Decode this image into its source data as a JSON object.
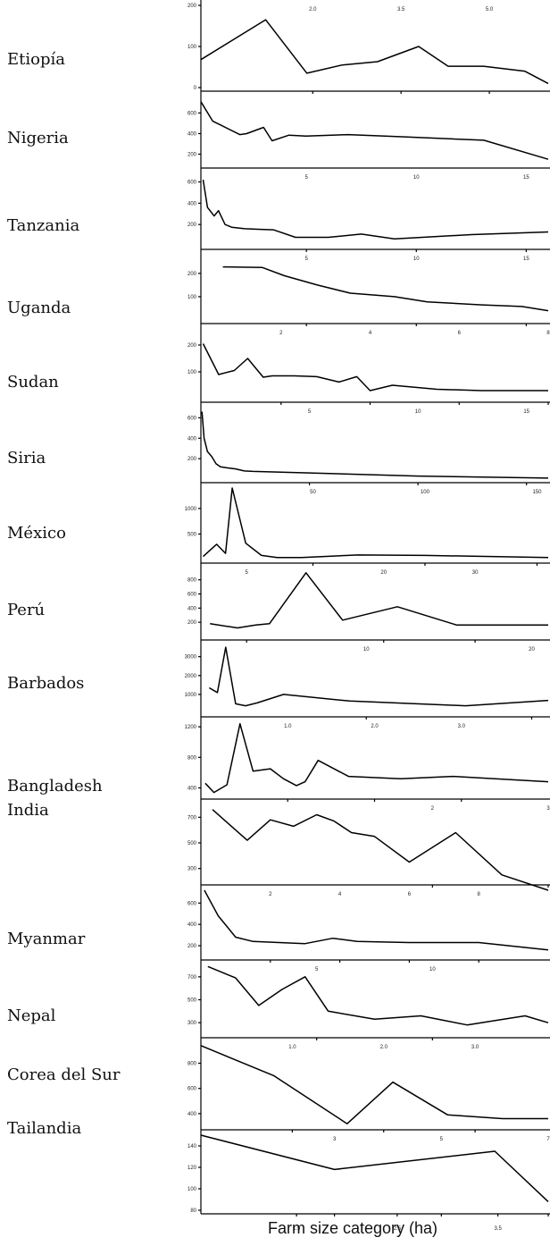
{
  "chart_data": {
    "type": "line",
    "title": "",
    "xlabel": "Farm size category (ha)",
    "ylabel": "",
    "grid": false,
    "panels": [
      {
        "name": "Etiopía",
        "xlim": [
          0.1,
          6.0
        ],
        "ylim": [
          0,
          200
        ],
        "yticks": [
          0,
          100,
          200
        ],
        "ytick_labels": [
          "0",
          "100",
          "200"
        ],
        "xticks": [
          2.0,
          3.5,
          5.0
        ],
        "xtick_labels": [
          "2.0",
          "3.5",
          "5.0"
        ],
        "x": [
          0.1,
          1.2,
          1.9,
          2.5,
          3.1,
          3.8,
          4.3,
          4.9,
          5.6,
          6.0
        ],
        "y": [
          68,
          165,
          35,
          55,
          63,
          100,
          52,
          52,
          40,
          10
        ]
      },
      {
        "name": "Nigeria",
        "xlim": [
          1.3,
          21.8
        ],
        "ylim": [
          100,
          760
        ],
        "yticks": [
          200,
          400,
          600
        ],
        "ytick_labels": [
          "200",
          "400",
          "600"
        ],
        "xticks": [],
        "xtick_labels": [],
        "x": [
          1.3,
          2.0,
          2.5,
          3.6,
          4.0,
          5.0,
          5.5,
          6.5,
          7.5,
          10,
          13,
          18,
          21.8
        ],
        "y": [
          710,
          520,
          480,
          390,
          400,
          460,
          330,
          385,
          375,
          390,
          370,
          335,
          150
        ]
      },
      {
        "name": "Tanzania",
        "xlim": [
          0.2,
          16.0
        ],
        "ylim": [
          0,
          680
        ],
        "yticks": [
          200,
          400,
          600
        ],
        "ytick_labels": [
          "200",
          "400",
          "600"
        ],
        "xticks": [
          5,
          10,
          15
        ],
        "xtick_labels": [
          "5",
          "10",
          "15"
        ],
        "x": [
          0.3,
          0.5,
          0.8,
          1.0,
          1.3,
          1.6,
          2.2,
          2.8,
          3.5,
          4.5,
          6.0,
          7.5,
          9.0,
          12.5,
          16.0
        ],
        "y": [
          620,
          360,
          280,
          330,
          200,
          175,
          160,
          155,
          150,
          80,
          80,
          110,
          65,
          105,
          130
        ]
      },
      {
        "name": "Uganda",
        "xlim": [
          0.2,
          16.0
        ],
        "ylim": [
          0,
          280
        ],
        "yticks": [
          100,
          200
        ],
        "ytick_labels": [
          "100",
          "200"
        ],
        "xticks": [
          5,
          10,
          15
        ],
        "xtick_labels": [
          "5",
          "10",
          "15"
        ],
        "x": [
          1.2,
          3.0,
          4.0,
          5.5,
          7.0,
          9.0,
          10.5,
          13.0,
          14.8,
          16.0
        ],
        "y": [
          228,
          225,
          190,
          150,
          115,
          100,
          78,
          65,
          58,
          40
        ]
      },
      {
        "name": "Sudan",
        "xlim": [
          0.2,
          8.0
        ],
        "ylim": [
          0,
          260
        ],
        "yticks": [
          100,
          200
        ],
        "ytick_labels": [
          "100",
          "200"
        ],
        "xticks": [
          2,
          4,
          6,
          8
        ],
        "xtick_labels": [
          "2",
          "4",
          "6",
          "8"
        ],
        "x": [
          0.25,
          0.6,
          0.95,
          1.25,
          1.6,
          1.8,
          2.3,
          2.8,
          3.3,
          3.7,
          4.0,
          4.5,
          5.5,
          6.5,
          8.0
        ],
        "y": [
          205,
          90,
          105,
          150,
          80,
          85,
          85,
          82,
          62,
          82,
          30,
          50,
          35,
          30,
          30
        ]
      },
      {
        "name": "Siria",
        "xlim": [
          0.0,
          16.0
        ],
        "ylim": [
          0,
          700
        ],
        "yticks": [
          200,
          400,
          600
        ],
        "ytick_labels": [
          "200",
          "400",
          "600"
        ],
        "xticks": [
          5,
          10,
          15
        ],
        "xtick_labels": [
          "5",
          "10",
          "15"
        ],
        "x": [
          0.05,
          0.15,
          0.3,
          0.5,
          0.7,
          0.9,
          1.2,
          1.6,
          2.0,
          2.4,
          5.0,
          10.0,
          16.0
        ],
        "y": [
          660,
          400,
          270,
          220,
          150,
          120,
          110,
          100,
          80,
          75,
          60,
          30,
          10
        ]
      },
      {
        "name": "México",
        "xlim": [
          0.0,
          155.0
        ],
        "ylim": [
          0,
          1400
        ],
        "yticks": [
          500,
          1000
        ],
        "ytick_labels": [
          "500",
          "1000"
        ],
        "xticks": [
          50,
          100,
          150
        ],
        "xtick_labels": [
          "50",
          "100",
          "150"
        ],
        "x": [
          1,
          7,
          11,
          14,
          20,
          27,
          34,
          45,
          70,
          100,
          155
        ],
        "y": [
          60,
          300,
          120,
          1400,
          320,
          80,
          40,
          40,
          90,
          80,
          40
        ]
      },
      {
        "name": "Perú",
        "xlim": [
          0.0,
          38.0
        ],
        "ylim": [
          0,
          960
        ],
        "yticks": [
          200,
          400,
          600,
          800
        ],
        "ytick_labels": [
          "200",
          "400",
          "600",
          "800"
        ],
        "xticks": [
          5,
          20,
          30
        ],
        "xtick_labels": [
          "5",
          "20",
          "30"
        ],
        "x": [
          1,
          4,
          6,
          7.5,
          11.5,
          15.5,
          21.5,
          28,
          38
        ],
        "y": [
          180,
          120,
          160,
          180,
          900,
          230,
          420,
          160,
          160
        ]
      },
      {
        "name": "Barbados",
        "xlim": [
          0.0,
          21.0
        ],
        "ylim": [
          0,
          3600
        ],
        "yticks": [
          1000,
          2000,
          3000
        ],
        "ytick_labels": [
          "1000",
          "2000",
          "3000"
        ],
        "xticks": [
          10,
          20
        ],
        "xtick_labels": [
          "10",
          "20"
        ],
        "x": [
          0.5,
          1.0,
          1.5,
          2.1,
          2.7,
          3.4,
          5.0,
          9.0,
          16.0,
          21.0
        ],
        "y": [
          1350,
          1100,
          3500,
          500,
          400,
          550,
          1000,
          650,
          400,
          680
        ]
      },
      {
        "name": "Bangladesh",
        "xlim": [
          0.0,
          4.0
        ],
        "ylim": [
          300,
          1260
        ],
        "yticks": [
          400,
          800,
          1200
        ],
        "ytick_labels": [
          "400",
          "800",
          "1200"
        ],
        "xticks": [
          1.0,
          2.0,
          3.0
        ],
        "xtick_labels": [
          "1.0",
          "2.0",
          "3.0"
        ],
        "x": [
          0.05,
          0.15,
          0.3,
          0.45,
          0.6,
          0.8,
          0.95,
          1.1,
          1.2,
          1.35,
          1.7,
          2.3,
          2.9,
          4.0
        ],
        "y": [
          460,
          340,
          440,
          1240,
          620,
          650,
          520,
          430,
          480,
          760,
          550,
          520,
          550,
          480
        ]
      },
      {
        "name": "India",
        "xlim": [
          0.0,
          3.0
        ],
        "ylim": [
          200,
          800
        ],
        "yticks": [
          300,
          500,
          700
        ],
        "ytick_labels": [
          "300",
          "500",
          "700"
        ],
        "xticks": [
          2,
          3
        ],
        "xtick_labels": [
          "2",
          "3"
        ],
        "x": [
          0.1,
          0.4,
          0.6,
          0.8,
          1.0,
          1.15,
          1.3,
          1.5,
          1.8,
          2.2,
          2.6,
          3.0
        ],
        "y": [
          760,
          520,
          680,
          630,
          720,
          670,
          580,
          550,
          350,
          580,
          250,
          130
        ]
      },
      {
        "name": "Myanmar",
        "xlim": [
          0.0,
          10.0
        ],
        "ylim": [
          100,
          720
        ],
        "yticks": [
          200,
          400,
          600
        ],
        "ytick_labels": [
          "200",
          "400",
          "600"
        ],
        "xticks": [
          2,
          4,
          6,
          8
        ],
        "xtick_labels": [
          "2",
          "4",
          "6",
          "8"
        ],
        "x": [
          0.1,
          0.5,
          1.0,
          1.5,
          3.0,
          3.8,
          4.5,
          6.0,
          8.0,
          10.0
        ],
        "y": [
          720,
          480,
          280,
          240,
          220,
          270,
          240,
          230,
          230,
          160
        ]
      },
      {
        "name": "Nepal",
        "xlim": [
          0.0,
          15.0
        ],
        "ylim": [
          200,
          800
        ],
        "yticks": [
          300,
          500,
          700
        ],
        "ytick_labels": [
          "300",
          "500",
          "700"
        ],
        "xticks": [
          5,
          10
        ],
        "xtick_labels": [
          "5",
          "10"
        ],
        "x": [
          0.3,
          1.5,
          2.5,
          3.5,
          4.5,
          5.5,
          7.5,
          9.5,
          11.5,
          14.0,
          15.0
        ],
        "y": [
          790,
          690,
          450,
          590,
          700,
          400,
          330,
          360,
          280,
          360,
          300
        ]
      },
      {
        "name": "Corea del Sur",
        "xlim": [
          0.0,
          3.8
        ],
        "ylim": [
          300,
          960
        ],
        "yticks": [
          400,
          600,
          800
        ],
        "ytick_labels": [
          "400",
          "600",
          "800"
        ],
        "xticks": [
          1.0,
          2.0,
          3.0
        ],
        "xtick_labels": [
          "1.0",
          "2.0",
          "3.0"
        ],
        "x": [
          0.0,
          0.8,
          1.6,
          2.1,
          2.7,
          3.3,
          3.8
        ],
        "y": [
          940,
          700,
          320,
          650,
          390,
          360,
          360
        ]
      },
      {
        "name": "Tailandia",
        "xlim": [
          0.5,
          7.0
        ],
        "ylim": [
          80,
          150
        ],
        "yticks": [
          80,
          100,
          120,
          140
        ],
        "ytick_labels": [
          "80",
          "100",
          "120",
          "140"
        ],
        "xticks": [
          3,
          5,
          7
        ],
        "xtick_labels": [
          "3",
          "5",
          "7"
        ],
        "x": [
          0.5,
          3.0,
          6.0,
          7.0
        ],
        "y": [
          150,
          118,
          135,
          88
        ],
        "x2ticks": [
          1.5,
          2.5,
          3.5
        ],
        "x2tick_labels": [
          "1.5",
          "2.5",
          "3.5"
        ],
        "x2lim": [
          0.55,
          4.0
        ]
      }
    ]
  }
}
